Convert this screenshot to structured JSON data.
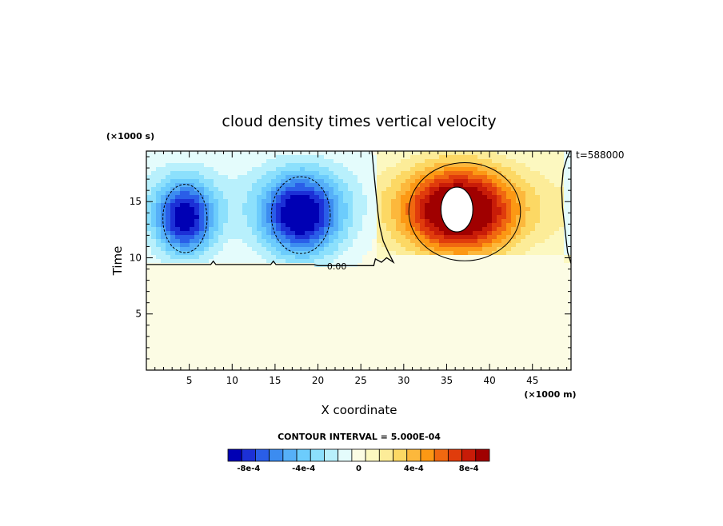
{
  "chart_data": {
    "type": "heatmap",
    "title": "cloud density times vertical velocity",
    "xlabel": "X coordinate",
    "ylabel": "Time",
    "x_unit": "(×1000 m)",
    "y_unit": "(×1000 s)",
    "time_stamp": "t=588000",
    "contour_interval_text": "CONTOUR INTERVAL = 5.000E-04",
    "xlim": [
      0,
      49.5
    ],
    "ylim": [
      0,
      19.5
    ],
    "x_ticks": [
      5,
      10,
      15,
      20,
      25,
      30,
      35,
      40,
      45
    ],
    "y_ticks": [
      5,
      10,
      15
    ],
    "zero_contour_label": "0.00",
    "z_levels": [
      -0.0009,
      -0.0008,
      -0.0007,
      -0.0006,
      -0.0005,
      -0.0004,
      -0.0003,
      -0.0002,
      -0.0001,
      0,
      0.0001,
      0.0002,
      0.0003,
      0.0004,
      0.0005,
      0.0006,
      0.0007,
      0.0008,
      0.0009
    ],
    "colorbar_colors": [
      "#0000b4",
      "#1c30d6",
      "#2a5ee8",
      "#3c8cf0",
      "#56b0f8",
      "#6cccfc",
      "#8ce0fc",
      "#b8f0fc",
      "#e4fcfc",
      "#fcfce4",
      "#fcf8c0",
      "#fcec98",
      "#fcd864",
      "#fcb83c",
      "#fc9814",
      "#f06810",
      "#e03c0c",
      "#c81c08",
      "#a00000"
    ],
    "colorbar_labels": [
      {
        "value": -0.0008,
        "text": "-8e-4"
      },
      {
        "value": -0.0004,
        "text": "-4e-4"
      },
      {
        "value": 0,
        "text": "0"
      },
      {
        "value": 0.0004,
        "text": "4e-4"
      },
      {
        "value": 0.0008,
        "text": "8e-4"
      }
    ],
    "features": [
      {
        "kind": "downdraft",
        "x": 4.5,
        "y": 13.5,
        "peak": -0.00085,
        "sx": 3.3,
        "sy": 3.2
      },
      {
        "kind": "downdraft",
        "x": 18.0,
        "y": 13.8,
        "peak": -0.00092,
        "sx": 4.4,
        "sy": 3.6
      },
      {
        "kind": "updraft",
        "x": 36.5,
        "y": 14.2,
        "peak": 0.00105,
        "sx": 6.2,
        "sy": 3.8
      }
    ],
    "zero_line": [
      [
        0,
        9.4
      ],
      [
        7.5,
        9.4
      ],
      [
        7.8,
        9.7
      ],
      [
        8.1,
        9.4
      ],
      [
        14.5,
        9.4
      ],
      [
        14.8,
        9.7
      ],
      [
        15.1,
        9.4
      ],
      [
        19.5,
        9.4
      ],
      [
        20,
        9.3
      ],
      [
        26.5,
        9.3
      ],
      [
        26.7,
        9.9
      ],
      [
        27.4,
        9.6
      ],
      [
        28,
        10.0
      ],
      [
        28.8,
        9.6
      ],
      [
        28.2,
        10.5
      ],
      [
        27.6,
        11.5
      ],
      [
        27.2,
        12.8
      ],
      [
        27.0,
        14.0
      ],
      [
        26.8,
        15.5
      ],
      [
        26.6,
        17.0
      ],
      [
        26.4,
        18.6
      ],
      [
        26.3,
        19.5
      ]
    ],
    "right_zero_line": [
      [
        49.4,
        19.5
      ],
      [
        49.0,
        18.8
      ],
      [
        48.6,
        17.8
      ],
      [
        48.4,
        16.2
      ],
      [
        48.5,
        14.5
      ],
      [
        48.8,
        12.5
      ],
      [
        49.1,
        10.5
      ],
      [
        49.5,
        9.5
      ]
    ]
  }
}
